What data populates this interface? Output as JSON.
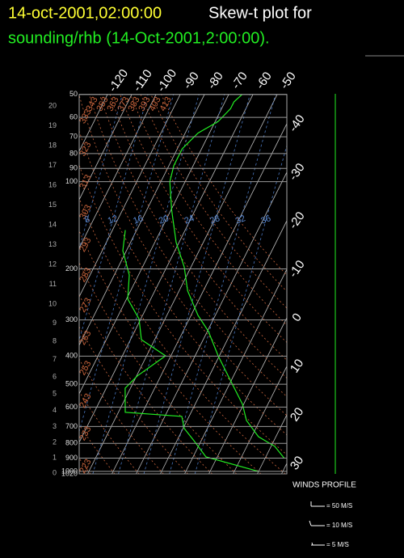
{
  "chart_data": {
    "type": "skewt",
    "title_date": "14-oct-2001,02:00:00",
    "title": "Skew-t plot for",
    "subtitle": "sounding/rhb (14-Oct-2001,2:00:00).",
    "plim": [
      1020,
      50
    ],
    "pticks": [
      50,
      60,
      70,
      80,
      90,
      100,
      200,
      300,
      400,
      500,
      600,
      700,
      800,
      900,
      1000,
      1020
    ],
    "height_km_ticks": [
      0,
      1,
      2,
      3,
      4,
      5,
      6,
      7,
      8,
      9,
      10,
      11,
      12,
      13,
      14,
      15,
      16,
      17,
      18,
      19,
      20
    ],
    "isotherm_top_ticks": [
      -120,
      -110,
      -100,
      -90,
      -80,
      -70,
      -60,
      -50
    ],
    "isotherm_right_ticks": [
      -40,
      -30,
      -20,
      -10,
      0,
      10,
      20,
      30
    ],
    "dry_adiabats": [
      223,
      233,
      243,
      253,
      263,
      273,
      283,
      293,
      303,
      313,
      323,
      333,
      343,
      353,
      363,
      373,
      383,
      393,
      403,
      413
    ],
    "mixing_ratio_lines": [
      8,
      12,
      16,
      20,
      24,
      28,
      32,
      36
    ],
    "series": [
      {
        "color": "#22ee22",
        "pressure": [
          902,
          819,
          759,
          667,
          586,
          484,
          399,
          329,
          289,
          238,
          197,
          162,
          125,
          100,
          88,
          77,
          68,
          62,
          56,
          53,
          50
        ],
        "values": [
          28,
          21.5,
          12.8,
          4.5,
          -0.5,
          -10.5,
          -20.5,
          -29.5,
          -37.2,
          -46.5,
          -52.8,
          -61.2,
          -69.8,
          -76.3,
          -78,
          -78,
          -74.7,
          -68.8,
          -66.3,
          -66.3,
          -64.5
        ]
      },
      {
        "color": "#22ee22",
        "pressure": [
          1000,
          891,
          783,
          711,
          646,
          625,
          516,
          468,
          399,
          351,
          298,
          254,
          210,
          173,
          147
        ],
        "values": [
          20,
          -4.7,
          -13,
          -19.5,
          -23,
          -47.2,
          -52.2,
          -49.7,
          -42.2,
          -55.5,
          -60.7,
          -69.5,
          -73.8,
          -81.5,
          -84.7
        ]
      }
    ],
    "winds_title": "WINDS PROFILE",
    "wind_legend": [
      "= 50 M/S",
      "= 10 M/S",
      "= 5 M/S"
    ]
  }
}
